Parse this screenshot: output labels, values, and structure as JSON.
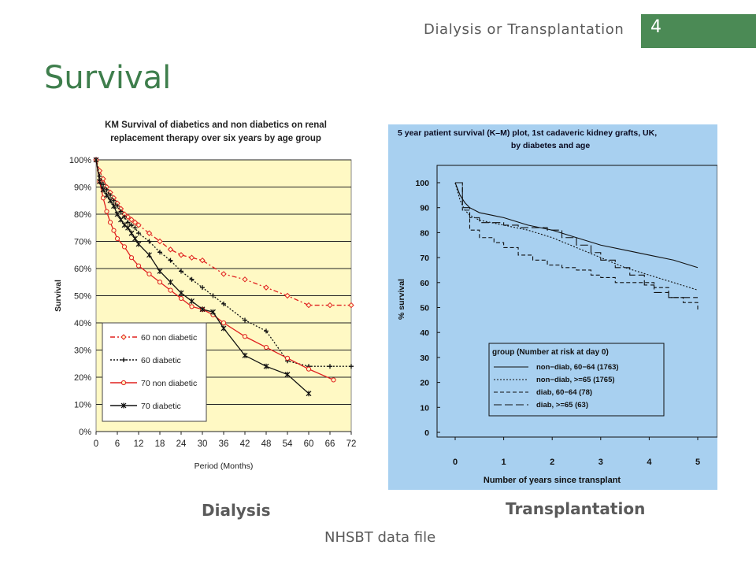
{
  "header": {
    "section": "Dialysis or Transplantation",
    "page_number": "4",
    "accent_color": "#4b8a55"
  },
  "slide": {
    "title": "Survival",
    "title_color": "#3e7e4c"
  },
  "captions": {
    "dialysis": "Dialysis",
    "transplantation": "Transplantation"
  },
  "footer": {
    "source": "NHSBT data file"
  },
  "chart_data": [
    {
      "type": "line",
      "title": "KM Survival of diabetics and non diabetics on renal replacement therapy over six years by age group",
      "title_lines": [
        "KM Survival of diabetics and non diabetics on renal",
        "replacement therapy over six years by age group"
      ],
      "xlabel": "Period (Months)",
      "ylabel": "Survival",
      "xlim": [
        0,
        72
      ],
      "ylim": [
        0,
        100
      ],
      "x_ticks": [
        "0",
        "6",
        "12",
        "18",
        "24",
        "30",
        "36",
        "42",
        "48",
        "54",
        "60",
        "66",
        "72"
      ],
      "y_ticks": [
        "0%",
        "10%",
        "20%",
        "30%",
        "40%",
        "50%",
        "60%",
        "70%",
        "80%",
        "90%",
        "100%"
      ],
      "grid": true,
      "plot_background": "#fff9c4",
      "legend_position": "bottom-left",
      "series": [
        {
          "name": "60 non diabetic",
          "color": "#e0201f",
          "dash": "6,3,2,3",
          "marker": "diamond",
          "x": [
            0,
            1,
            2,
            3,
            4,
            5,
            6,
            7,
            8,
            9,
            10,
            11,
            12,
            15,
            18,
            21,
            24,
            27,
            30,
            36,
            42,
            48,
            54,
            60,
            66,
            72
          ],
          "y": [
            100,
            96,
            93,
            90,
            88,
            86,
            84,
            82,
            80,
            79,
            78,
            77,
            76,
            73,
            70,
            67,
            65,
            64,
            63,
            58,
            56,
            53,
            50,
            46.5,
            46.5,
            46.5
          ]
        },
        {
          "name": "60 diabetic",
          "color": "#111111",
          "dash": "2,2",
          "marker": "plus",
          "x": [
            0,
            1,
            2,
            3,
            4,
            5,
            6,
            7,
            8,
            9,
            10,
            11,
            12,
            15,
            18,
            21,
            24,
            27,
            30,
            33,
            36,
            42,
            48,
            54,
            60,
            66,
            72
          ],
          "y": [
            100,
            94,
            91,
            89,
            87,
            85,
            83,
            81,
            79,
            77,
            76,
            75,
            73,
            70,
            66,
            63,
            59,
            56,
            53,
            50,
            47,
            41,
            37,
            26,
            24,
            24,
            24
          ]
        },
        {
          "name": "70 non diabetic",
          "color": "#e0201f",
          "dash": "",
          "marker": "circle",
          "x": [
            0,
            1,
            2,
            3,
            4,
            5,
            6,
            8,
            10,
            12,
            15,
            18,
            21,
            24,
            27,
            30,
            33,
            36,
            42,
            48,
            54,
            60,
            67
          ],
          "y": [
            100,
            92,
            86,
            81,
            77,
            74,
            71,
            68,
            64,
            61,
            58,
            55,
            52,
            49,
            46,
            45,
            43,
            40,
            35,
            31,
            27,
            23,
            19
          ]
        },
        {
          "name": "70 diabetic",
          "color": "#111111",
          "dash": "",
          "marker": "star",
          "x": [
            0,
            1,
            2,
            3,
            4,
            5,
            6,
            7,
            8,
            9,
            10,
            11,
            12,
            15,
            18,
            21,
            24,
            27,
            30,
            33,
            36,
            42,
            48,
            54,
            60
          ],
          "y": [
            100,
            92,
            89,
            87,
            85,
            83,
            80,
            78,
            76,
            75,
            73,
            71,
            69,
            65,
            59,
            55,
            51,
            48,
            45,
            44,
            38,
            28,
            24,
            21,
            14
          ]
        }
      ]
    },
    {
      "type": "line",
      "title": "5 year patient survival (K-M) plot, 1st cadaveric kidney grafts, UK, by diabetes and age",
      "title_lines": [
        "5 year patient survival (K–M) plot, 1st cadaveric kidney grafts, UK,",
        "by diabetes and age"
      ],
      "xlabel": "Number of years since transplant",
      "ylabel": "% survival",
      "xlim": [
        0,
        5
      ],
      "ylim": [
        0,
        100
      ],
      "x_ticks": [
        "0",
        "1",
        "2",
        "3",
        "4",
        "5"
      ],
      "y_ticks": [
        "0",
        "10",
        "20",
        "30",
        "40",
        "50",
        "60",
        "70",
        "80",
        "90",
        "100"
      ],
      "background": "#a8d0f0",
      "legend_position": "bottom-right",
      "legend_title": "group (Number at risk at day 0)",
      "series": [
        {
          "name": "non−diab, 60−64 (1763)",
          "style": "solid",
          "step": false,
          "x": [
            0,
            0.1,
            0.2,
            0.3,
            0.5,
            0.75,
            1,
            1.5,
            2,
            2.5,
            3,
            3.5,
            4,
            4.5,
            5
          ],
          "y": [
            100,
            95,
            92,
            90,
            88,
            87,
            86,
            83,
            81,
            78,
            75,
            73,
            71,
            69,
            66
          ]
        },
        {
          "name": "non−diab, >=65 (1765)",
          "style": "dotted",
          "step": false,
          "x": [
            0,
            0.1,
            0.2,
            0.3,
            0.5,
            0.75,
            1,
            1.5,
            2,
            2.5,
            3,
            3.5,
            4,
            4.5,
            5
          ],
          "y": [
            100,
            93,
            89,
            87,
            85,
            84,
            83,
            81,
            78,
            74,
            70,
            66,
            63,
            60,
            57
          ]
        },
        {
          "name": "diab, 60−64 (78)",
          "style": "dashed",
          "step": true,
          "x": [
            0,
            0.15,
            0.3,
            0.5,
            0.8,
            1,
            1.3,
            1.6,
            1.9,
            2.2,
            2.5,
            2.8,
            3,
            3.3,
            3.6,
            3.9,
            4.1,
            4.4,
            4.7,
            5
          ],
          "y": [
            100,
            89,
            81,
            78,
            76,
            74,
            71,
            69,
            67,
            66,
            65,
            63,
            62,
            60,
            60,
            60,
            58,
            54,
            52,
            49
          ]
        },
        {
          "name": "diab, >=65 (63)",
          "style": "longdash",
          "step": true,
          "x": [
            0,
            0.15,
            0.3,
            0.5,
            0.8,
            1,
            1.3,
            1.6,
            1.9,
            2.2,
            2.5,
            2.8,
            3,
            3.3,
            3.6,
            3.9,
            4.1,
            4.4,
            4.7,
            5
          ],
          "y": [
            100,
            90,
            86,
            84,
            84,
            83,
            82,
            82,
            81,
            78,
            75,
            72,
            69,
            66,
            63,
            59,
            56,
            54,
            54,
            54
          ]
        }
      ]
    }
  ]
}
